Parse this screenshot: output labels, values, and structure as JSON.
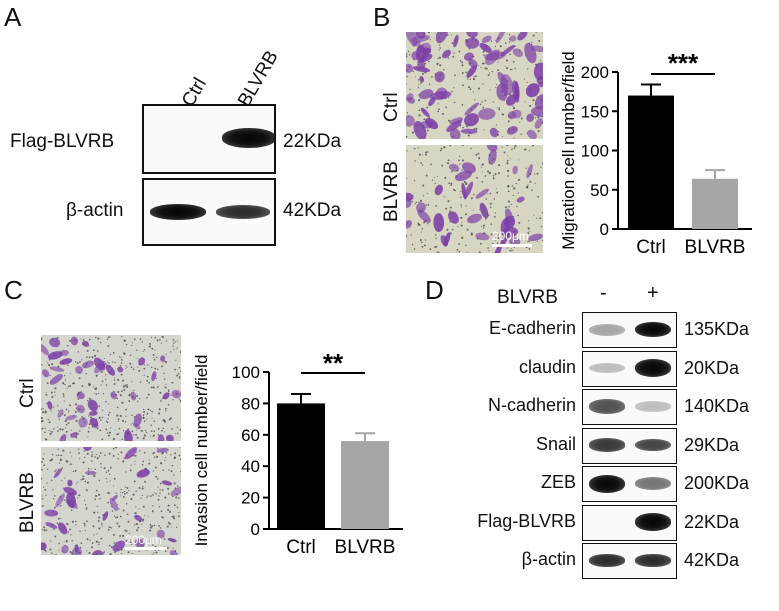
{
  "panels": {
    "a": "A",
    "b": "B",
    "c": "C",
    "d": "D"
  },
  "panel_a": {
    "lanes": [
      "Ctrl",
      "BLVRB"
    ],
    "rows": [
      {
        "label": "Flag-BLVRB",
        "mw": "22KDa"
      },
      {
        "label": "β-actin",
        "mw": "42KDa"
      }
    ]
  },
  "panel_b": {
    "row_labels": [
      "Ctrl",
      "BLVRB"
    ],
    "scale_bar": "200μm",
    "significance": "***"
  },
  "panel_c": {
    "row_labels": [
      "Ctrl",
      "BLVRB"
    ],
    "scale_bar": "200μm",
    "significance": "**"
  },
  "panel_d": {
    "treatment": "BLVRB",
    "lane_signs": [
      "-",
      "+"
    ],
    "rows": [
      {
        "label": "E-cadherin",
        "mw": "135KDa"
      },
      {
        "label": "claudin",
        "mw": "20KDa"
      },
      {
        "label": "N-cadherin",
        "mw": "140KDa"
      },
      {
        "label": "Snail",
        "mw": "29KDa"
      },
      {
        "label": "ZEB",
        "mw": "200KDa"
      },
      {
        "label": "Flag-BLVRB",
        "mw": "22KDa"
      },
      {
        "label": "β-actin",
        "mw": "42KDa"
      }
    ]
  },
  "colors": {
    "ctrl_bar": "#000000",
    "blvrb_bar": "#a6a6a6",
    "stain": "#7a3fa0",
    "field": "#d8d7c2"
  },
  "chart_data": [
    {
      "type": "bar",
      "categories": [
        "Ctrl",
        "BLVRB"
      ],
      "values": [
        170,
        64
      ],
      "errors": [
        14,
        11
      ],
      "ylabel": "Migration cell number/field",
      "ylim": [
        0,
        200
      ],
      "yticks": [
        0,
        50,
        100,
        150,
        200
      ],
      "significance": "***"
    },
    {
      "type": "bar",
      "categories": [
        "Ctrl",
        "BLVRB"
      ],
      "values": [
        80,
        56
      ],
      "errors": [
        6,
        5
      ],
      "ylabel": "Invasion cell number/field",
      "ylim": [
        0,
        100
      ],
      "yticks": [
        0,
        20,
        40,
        60,
        80,
        100
      ],
      "significance": "**"
    }
  ]
}
